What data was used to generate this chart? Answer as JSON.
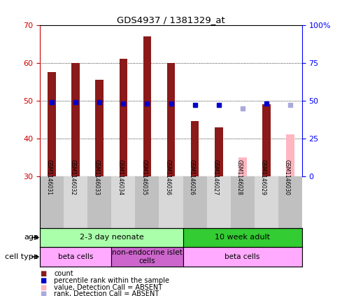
{
  "title": "GDS4937 / 1381329_at",
  "samples": [
    "GSM1146031",
    "GSM1146032",
    "GSM1146033",
    "GSM1146034",
    "GSM1146035",
    "GSM1146036",
    "GSM1146026",
    "GSM1146027",
    "GSM1146028",
    "GSM1146029",
    "GSM1146030"
  ],
  "count_values": [
    57.5,
    60.0,
    55.5,
    61.0,
    67.0,
    60.0,
    44.5,
    43.0,
    35.0,
    49.0,
    41.0
  ],
  "rank_values": [
    49,
    49,
    49,
    48,
    48,
    48,
    47,
    47,
    45,
    48,
    47
  ],
  "absent": [
    false,
    false,
    false,
    false,
    false,
    false,
    false,
    false,
    true,
    false,
    true
  ],
  "ylim_min": 30,
  "ylim_max": 70,
  "yticks": [
    30,
    40,
    50,
    60,
    70
  ],
  "y2ticks": [
    0,
    25,
    50,
    75,
    100
  ],
  "bar_color": "#8B1A1A",
  "bar_color_absent": "#FFB6C1",
  "rank_color": "#0000CD",
  "rank_color_absent": "#AAAADD",
  "age_groups": [
    {
      "label": "2-3 day neonate",
      "start": 0,
      "end": 6,
      "color": "#AAFFAA"
    },
    {
      "label": "10 week adult",
      "start": 6,
      "end": 11,
      "color": "#33CC33"
    }
  ],
  "cell_type_groups": [
    {
      "label": "beta cells",
      "start": 0,
      "end": 3,
      "color": "#FFAAFF"
    },
    {
      "label": "non-endocrine islet\ncells",
      "start": 3,
      "end": 6,
      "color": "#CC66CC"
    },
    {
      "label": "beta cells",
      "start": 6,
      "end": 11,
      "color": "#FFAAFF"
    }
  ],
  "legend_items": [
    {
      "label": "count",
      "color": "#8B1A1A"
    },
    {
      "label": "percentile rank within the sample",
      "color": "#0000CD"
    },
    {
      "label": "value, Detection Call = ABSENT",
      "color": "#FFB6C1"
    },
    {
      "label": "rank, Detection Call = ABSENT",
      "color": "#AAAADD"
    }
  ]
}
